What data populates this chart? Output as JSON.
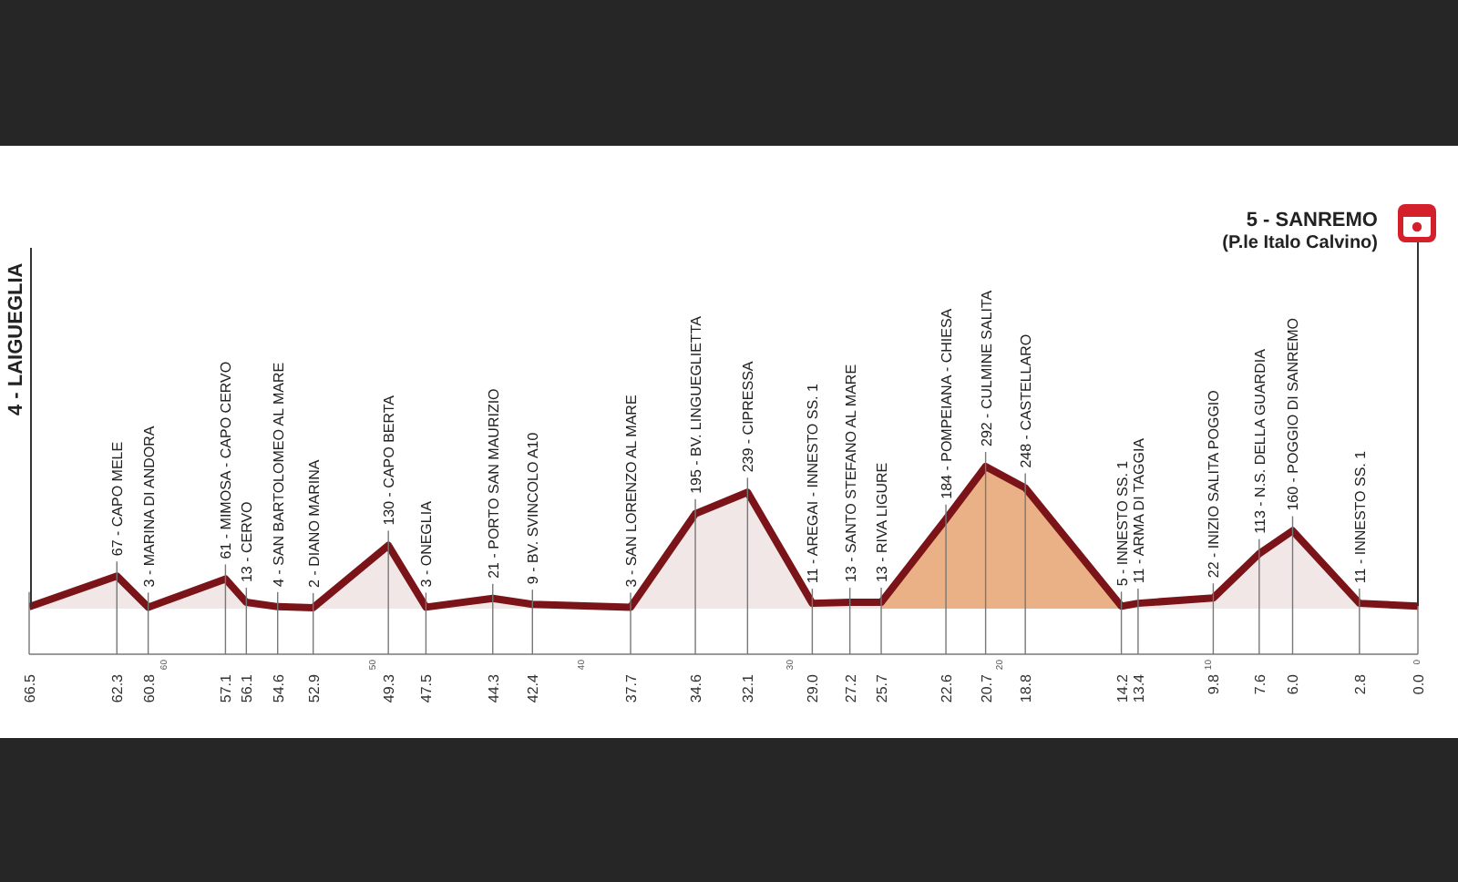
{
  "chart_data": {
    "type": "area",
    "x": [
      66.5,
      62.3,
      60.8,
      57.1,
      56.1,
      54.6,
      52.9,
      49.3,
      47.5,
      44.3,
      42.4,
      37.7,
      34.6,
      32.1,
      29,
      27.2,
      25.7,
      22.6,
      20.7,
      18.8,
      14.2,
      13.4,
      9.8,
      7.6,
      6,
      2.8,
      0
    ],
    "values": [
      4,
      67,
      3,
      61,
      13,
      4,
      2,
      130,
      3,
      21,
      9,
      3,
      195,
      239,
      11,
      13,
      13,
      184,
      292,
      248,
      5,
      11,
      22,
      113,
      160,
      11,
      5
    ],
    "value_labels": [
      null,
      "67 - CAPO MELE",
      "3 - MARINA DI ANDORA",
      "61 - MIMOSA - CAPO CERVO",
      "13 - CERVO",
      "4 - SAN BARTOLOMEO AL MARE",
      "2 - DIANO MARINA",
      "130 - CAPO BERTA",
      "3 - ONEGLIA",
      "21 - PORTO SAN MAURIZIO",
      "9 - BV. SVINCOLO A10",
      "3 - SAN LORENZO AL MARE",
      "195 - BV. LINGUEGLIETTA",
      "239 - CIPRESSA",
      "11 - AREGAI - INNESTO SS. 1",
      "13 - SANTO STEFANO AL MARE",
      "13 - RIVA LIGURE",
      "184 - POMPEIANA - CHIESA",
      "292 - CULMINE SALITA",
      "248 - CASTELLARO",
      "5 - INNESTO SS. 1",
      "11 - ARMA DI TAGGIA",
      "22 - INIZIO SALITA POGGIO",
      "113 - N.S. DELLA GUARDIA",
      "160 - POGGIO DI SANREMO",
      "11 - INNESTO SS. 1",
      null
    ],
    "color": "#7b1418",
    "xlim": [
      66.5,
      0
    ],
    "xticks": [
      66.5,
      62.3,
      60.8,
      57.1,
      56.1,
      54.6,
      52.9,
      49.3,
      47.5,
      44.3,
      42.4,
      37.7,
      34.6,
      32.1,
      {
        "value": 29,
        "label": "29.0"
      },
      27.2,
      25.7,
      22.6,
      20.7,
      18.8,
      14.2,
      13.4,
      9.8,
      7.6,
      {
        "value": 6,
        "label": "6.0"
      },
      2.8,
      {
        "value": 0,
        "label": "0.0"
      }
    ],
    "x2lim": [
      66.5,
      0
    ],
    "x2ticks": [
      60,
      50,
      40,
      30,
      20,
      10,
      0
    ],
    "tick_labels": "x",
    "grid": "x",
    "bands": [
      {
        "axis": "x",
        "from": 25.7,
        "to": 14.2,
        "color": "#f8c393"
      }
    ],
    "annotations": [
      "4 - LAIGUEGLIA",
      "5 - SANREMO\n(P.le Italo Calvino)"
    ]
  }
}
